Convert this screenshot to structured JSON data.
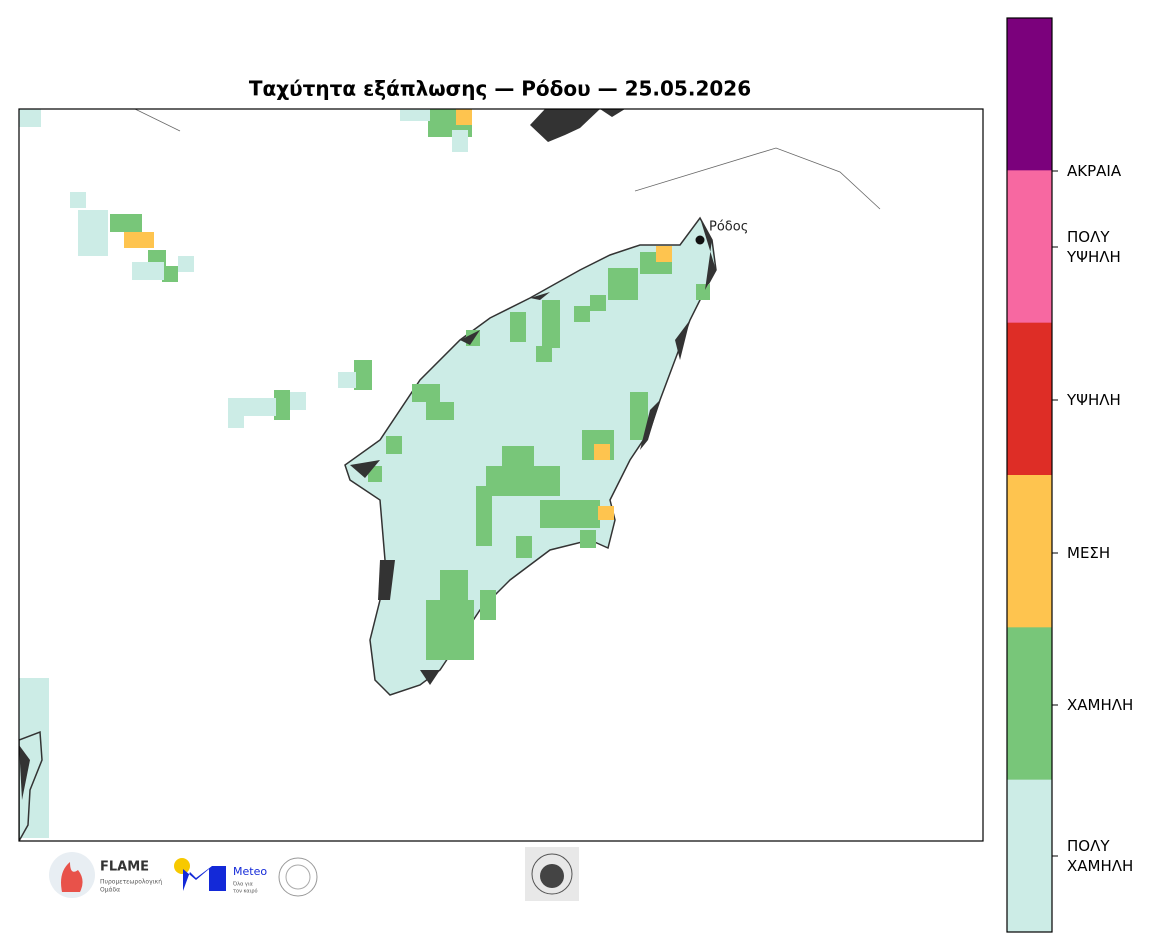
{
  "title": "Ταχύτητα εξάπλωσης — Ρόδου — 25.05.2026",
  "city": "Ρόδος",
  "legend": [
    {
      "label": "ΑΚΡΑΙΑ",
      "color": "#7b017c"
    },
    {
      "label": "ΠΟΛΥ ΥΨΗΛΗ",
      "color": "#f768a1"
    },
    {
      "label": "ΥΨΗΛΗ",
      "color": "#de2d26"
    },
    {
      "label": "ΜΕΣΗ",
      "color": "#fec44f"
    },
    {
      "label": "ΧΑΜΗΛΗ",
      "color": "#78c679"
    },
    {
      "label": "ΠΟΛΥ ΧΑΜΗΛΗ",
      "color": "#ccece6"
    }
  ],
  "logos": {
    "flame": {
      "name": "FLAME",
      "line1": "Πυρομετεωρολογική",
      "line2": "Ομάδα"
    },
    "meteo": {
      "name": "Meteo",
      "line1": "Όλα για",
      "line2": "τον καιρό"
    }
  }
}
